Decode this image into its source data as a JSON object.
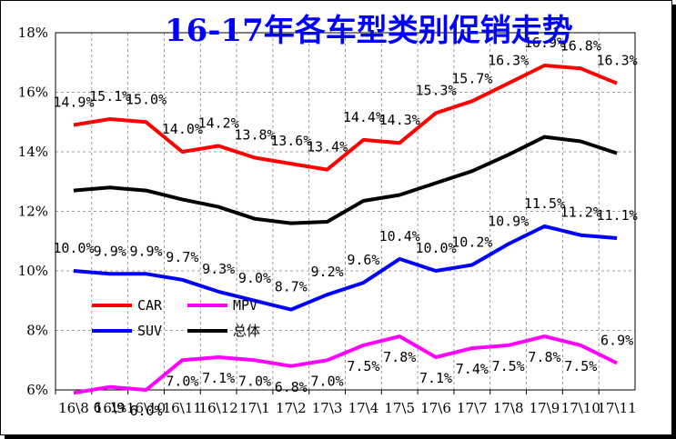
{
  "chart_data": {
    "type": "line",
    "title": "16-17年各车型类别促销走势",
    "categories": [
      "16\\8",
      "16\\9",
      "16\\10",
      "16\\11",
      "16\\12",
      "17\\1",
      "17\\2",
      "17\\3",
      "17\\4",
      "17\\5",
      "17\\6",
      "17\\7",
      "17\\8",
      "17\\9",
      "17\\10",
      "17\\11"
    ],
    "yticks": [
      "6%",
      "8%",
      "10%",
      "12%",
      "14%",
      "16%",
      "18%"
    ],
    "ylim": [
      6,
      18
    ],
    "grid": true,
    "legend_position": "bottom-left",
    "series": [
      {
        "name": "CAR",
        "color": "#ff0000",
        "values": [
          14.9,
          15.1,
          15.0,
          14.0,
          14.2,
          13.8,
          13.6,
          13.4,
          14.4,
          14.3,
          15.3,
          15.7,
          16.3,
          16.9,
          16.8,
          16.3
        ],
        "labels": [
          "14.9%",
          "15.1%",
          "15.0%",
          "14.0%",
          "14.2%",
          "13.8%",
          "13.6%",
          "13.4%",
          "14.4%",
          "14.3%",
          "15.3%",
          "15.7%",
          "16.3%",
          "16.9%",
          "16.8%",
          "16.3%"
        ]
      },
      {
        "name": "MPV",
        "color": "#ff00ff",
        "values": [
          5.9,
          6.1,
          6.0,
          7.0,
          7.1,
          7.0,
          6.8,
          7.0,
          7.5,
          7.8,
          7.1,
          7.4,
          7.5,
          7.8,
          7.5,
          6.9
        ],
        "labels": [
          "",
          "6.1%",
          "6.0%",
          "7.0%",
          "7.1%",
          "7.0%",
          "6.8%",
          "7.0%",
          "7.5%",
          "7.8%",
          "7.1%",
          "7.4%",
          "7.5%",
          "7.8%",
          "7.5%",
          "6.9%"
        ]
      },
      {
        "name": "SUV",
        "color": "#0000ff",
        "values": [
          10.0,
          9.9,
          9.9,
          9.7,
          9.3,
          9.0,
          8.7,
          9.2,
          9.6,
          10.4,
          10.0,
          10.2,
          10.9,
          11.5,
          11.2,
          11.1
        ],
        "labels": [
          "10.0%",
          "9.9%",
          "9.9%",
          "9.7%",
          "9.3%",
          "9.0%",
          "8.7%",
          "9.2%",
          "9.6%",
          "10.4%",
          "10.0%",
          "10.2%",
          "10.9%",
          "11.5%",
          "11.2%",
          "11.1%"
        ]
      },
      {
        "name": "总体",
        "color": "#000000",
        "values": [
          12.7,
          12.8,
          12.7,
          12.4,
          12.15,
          11.75,
          11.6,
          11.65,
          12.35,
          12.55,
          12.95,
          13.35,
          13.9,
          14.5,
          14.35,
          13.95
        ],
        "labels": []
      }
    ]
  }
}
